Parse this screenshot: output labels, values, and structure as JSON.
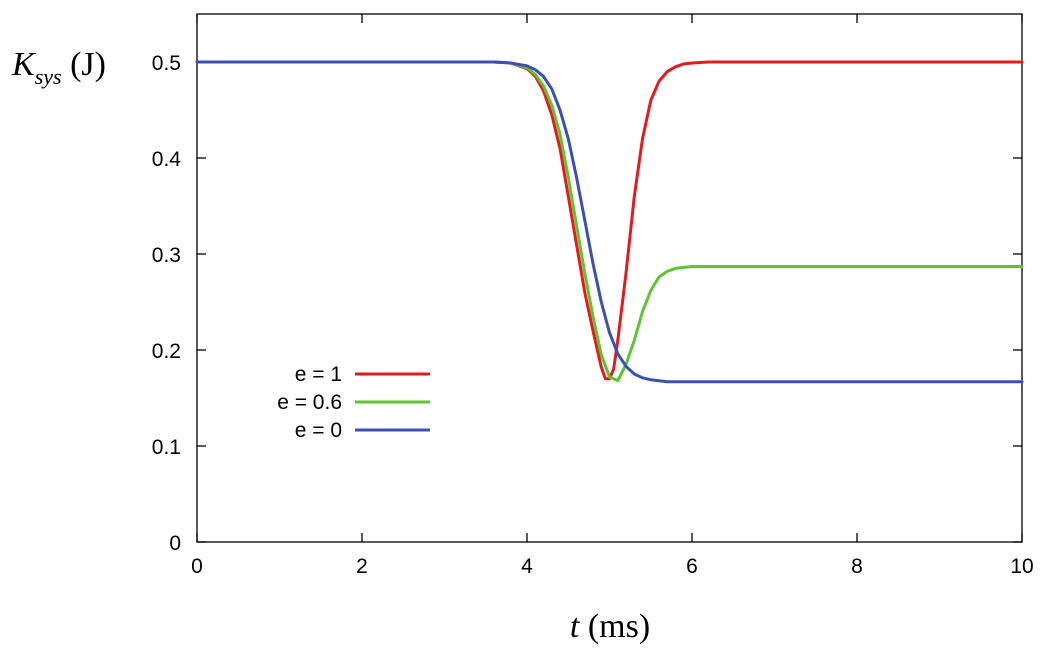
{
  "chart_data": {
    "type": "line",
    "title": "",
    "xlabel_var": "t",
    "xlabel_unit": " (ms)",
    "ylabel_var": "K",
    "ylabel_sub": "sys",
    "ylabel_unit": " (J)",
    "xlim": [
      0,
      10
    ],
    "ylim": [
      0,
      0.55
    ],
    "x_ticks": [
      0,
      2,
      4,
      6,
      8,
      10
    ],
    "x_tick_labels": [
      "0",
      "2",
      "4",
      "6",
      "8",
      "10"
    ],
    "y_ticks": [
      0,
      0.1,
      0.2,
      0.3,
      0.4,
      0.5
    ],
    "y_tick_labels": [
      "0",
      "0.1",
      "0.2",
      "0.3",
      "0.4",
      "0.5"
    ],
    "grid": false,
    "legend_position": "left-middle",
    "series": [
      {
        "name": "e = 1",
        "color": "#e41a1c",
        "x": [
          0,
          3.6,
          3.8,
          4.0,
          4.1,
          4.2,
          4.3,
          4.4,
          4.5,
          4.6,
          4.7,
          4.8,
          4.9,
          4.95,
          5.0,
          5.05,
          5.1,
          5.2,
          5.3,
          5.4,
          5.5,
          5.6,
          5.7,
          5.8,
          5.9,
          6.0,
          6.2,
          6.5,
          10
        ],
        "y": [
          0.5,
          0.5,
          0.499,
          0.493,
          0.485,
          0.47,
          0.445,
          0.41,
          0.36,
          0.31,
          0.26,
          0.22,
          0.182,
          0.17,
          0.17,
          0.18,
          0.21,
          0.28,
          0.36,
          0.42,
          0.46,
          0.48,
          0.49,
          0.495,
          0.498,
          0.499,
          0.5,
          0.5,
          0.5
        ]
      },
      {
        "name": "e = 0.6",
        "color": "#5cc531",
        "x": [
          0,
          3.6,
          3.8,
          4.0,
          4.1,
          4.2,
          4.3,
          4.4,
          4.5,
          4.6,
          4.7,
          4.8,
          4.9,
          5.0,
          5.1,
          5.2,
          5.3,
          5.4,
          5.5,
          5.6,
          5.7,
          5.8,
          5.9,
          6.0,
          6.2,
          10
        ],
        "y": [
          0.5,
          0.5,
          0.499,
          0.494,
          0.487,
          0.475,
          0.455,
          0.425,
          0.38,
          0.33,
          0.28,
          0.235,
          0.195,
          0.172,
          0.168,
          0.185,
          0.21,
          0.24,
          0.262,
          0.276,
          0.282,
          0.285,
          0.286,
          0.287,
          0.287,
          0.287
        ]
      },
      {
        "name": "e = 0",
        "color": "#3a50b5",
        "x": [
          0,
          3.6,
          3.8,
          4.0,
          4.1,
          4.2,
          4.3,
          4.4,
          4.5,
          4.6,
          4.7,
          4.8,
          4.9,
          5.0,
          5.1,
          5.2,
          5.3,
          5.4,
          5.5,
          5.6,
          5.7,
          5.8,
          6.0,
          10
        ],
        "y": [
          0.5,
          0.5,
          0.499,
          0.496,
          0.492,
          0.485,
          0.472,
          0.45,
          0.42,
          0.38,
          0.335,
          0.29,
          0.25,
          0.218,
          0.196,
          0.183,
          0.175,
          0.171,
          0.169,
          0.168,
          0.167,
          0.167,
          0.167,
          0.167
        ]
      }
    ]
  }
}
